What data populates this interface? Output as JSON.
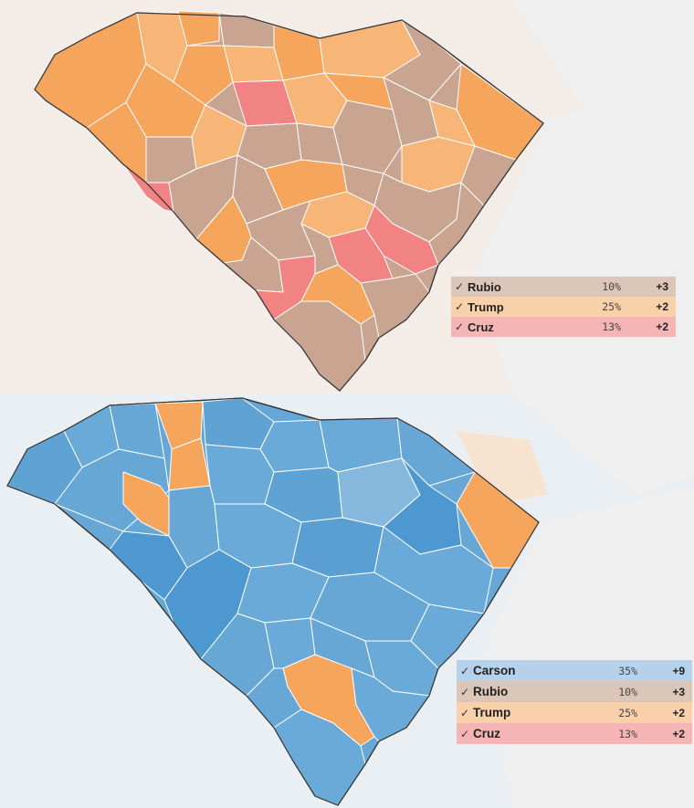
{
  "colors": {
    "trump": "#f5a55c",
    "trump_light": "#f7b677",
    "rubio": "#c9a591",
    "cruz": "#f28383",
    "carson": "#67a7d6",
    "carson_dark": "#4e98d2",
    "carson_light": "#86b8de",
    "bg_top": "#f4ece6",
    "bg_bottom": "#eaeff4"
  },
  "maps": [
    {
      "id": "top",
      "legend": [
        {
          "check": "✓",
          "name": "Rubio",
          "pct": "10%",
          "delta": "+3",
          "color": "#dcc6b8"
        },
        {
          "check": "✓",
          "name": "Trump",
          "pct": "25%",
          "delta": "+2",
          "color": "#f8d0aa"
        },
        {
          "check": "✓",
          "name": "Cruz",
          "pct": "13%",
          "delta": "+2",
          "color": "#f5b5b5"
        }
      ]
    },
    {
      "id": "bottom",
      "legend": [
        {
          "check": "✓",
          "name": "Carson",
          "pct": "35%",
          "delta": "+9",
          "color": "#b6d1ea"
        },
        {
          "check": "✓",
          "name": "Rubio",
          "pct": "10%",
          "delta": "+3",
          "color": "#dcc6b8"
        },
        {
          "check": "✓",
          "name": "Trump",
          "pct": "25%",
          "delta": "+2",
          "color": "#f8d0aa"
        },
        {
          "check": "✓",
          "name": "Cruz",
          "pct": "13%",
          "delta": "+2",
          "color": "#f5b5b5"
        }
      ]
    }
  ]
}
